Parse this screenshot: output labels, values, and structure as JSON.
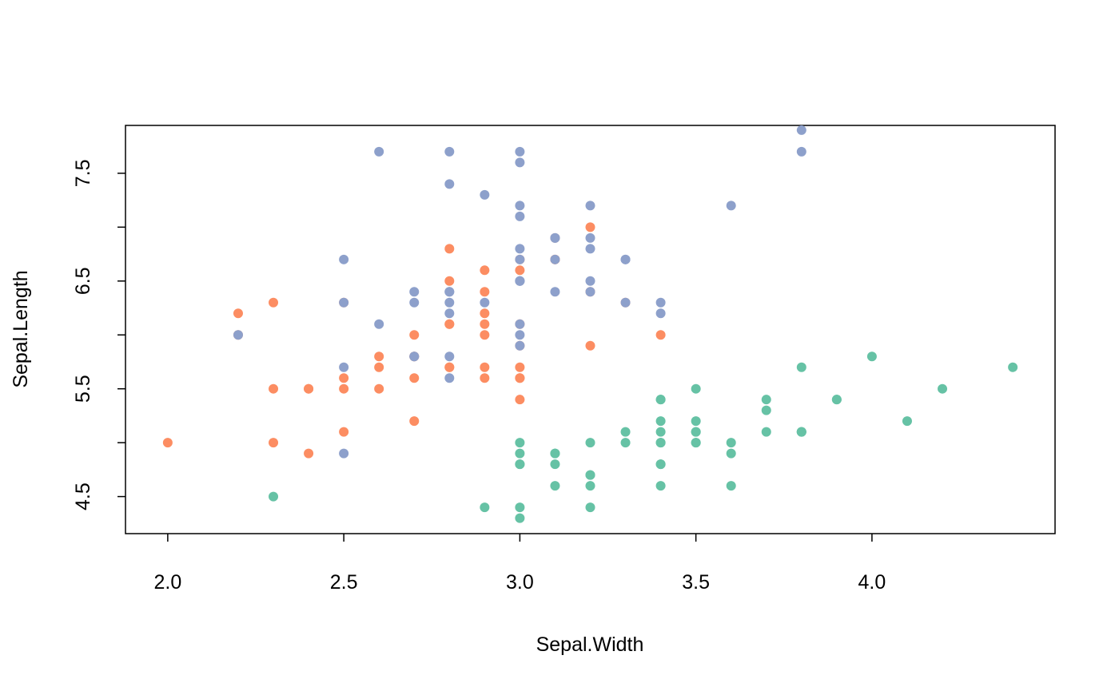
{
  "chart_data": {
    "type": "scatter",
    "title": "",
    "xlabel": "Sepal.Width",
    "ylabel": "Sepal.Length",
    "xlim": [
      1.88,
      4.52
    ],
    "ylim": [
      4.156,
      7.944
    ],
    "x_ticks": [
      2.0,
      2.5,
      3.0,
      3.5,
      4.0
    ],
    "x_tick_labels": [
      "2.0",
      "2.5",
      "3.0",
      "3.5",
      "4.0"
    ],
    "y_ticks": [
      4.5,
      5.0,
      5.5,
      6.0,
      6.5,
      7.0,
      7.5
    ],
    "y_tick_labels": [
      "4.5",
      "",
      "5.5",
      "",
      "6.5",
      "",
      "7.5"
    ],
    "grid": false,
    "legend": "none",
    "series": [
      {
        "color": "#66C2A5",
        "points": [
          [
            3.5,
            5.1
          ],
          [
            3.0,
            4.9
          ],
          [
            3.2,
            4.7
          ],
          [
            3.1,
            4.6
          ],
          [
            3.6,
            5.0
          ],
          [
            3.9,
            5.4
          ],
          [
            3.4,
            4.6
          ],
          [
            3.4,
            5.0
          ],
          [
            2.9,
            4.4
          ],
          [
            3.1,
            4.9
          ],
          [
            3.7,
            5.4
          ],
          [
            3.4,
            4.8
          ],
          [
            3.0,
            4.8
          ],
          [
            3.0,
            4.3
          ],
          [
            4.0,
            5.8
          ],
          [
            4.4,
            5.7
          ],
          [
            3.9,
            5.4
          ],
          [
            3.5,
            5.1
          ],
          [
            3.8,
            5.7
          ],
          [
            3.8,
            5.1
          ],
          [
            3.4,
            5.4
          ],
          [
            3.7,
            5.1
          ],
          [
            3.6,
            4.6
          ],
          [
            3.3,
            5.1
          ],
          [
            3.4,
            4.8
          ],
          [
            3.0,
            5.0
          ],
          [
            3.4,
            5.0
          ],
          [
            3.5,
            5.2
          ],
          [
            3.4,
            5.2
          ],
          [
            3.2,
            4.7
          ],
          [
            3.1,
            4.8
          ],
          [
            3.4,
            5.4
          ],
          [
            4.1,
            5.2
          ],
          [
            4.2,
            5.5
          ],
          [
            3.1,
            4.9
          ],
          [
            3.2,
            5.0
          ],
          [
            3.5,
            5.5
          ],
          [
            3.6,
            4.9
          ],
          [
            3.0,
            4.4
          ],
          [
            3.4,
            5.1
          ],
          [
            3.5,
            5.0
          ],
          [
            2.3,
            4.5
          ],
          [
            3.2,
            4.4
          ],
          [
            3.5,
            5.0
          ],
          [
            3.8,
            5.1
          ],
          [
            3.0,
            4.8
          ],
          [
            3.8,
            5.1
          ],
          [
            3.2,
            4.6
          ],
          [
            3.7,
            5.3
          ],
          [
            3.3,
            5.0
          ]
        ]
      },
      {
        "color": "#FC8D62",
        "points": [
          [
            3.2,
            7.0
          ],
          [
            3.2,
            6.4
          ],
          [
            3.1,
            6.9
          ],
          [
            2.3,
            5.5
          ],
          [
            2.8,
            6.5
          ],
          [
            2.8,
            5.7
          ],
          [
            3.3,
            6.3
          ],
          [
            2.4,
            4.9
          ],
          [
            2.9,
            6.6
          ],
          [
            2.7,
            5.2
          ],
          [
            2.0,
            5.0
          ],
          [
            3.0,
            5.9
          ],
          [
            2.2,
            6.0
          ],
          [
            2.9,
            6.1
          ],
          [
            2.9,
            5.6
          ],
          [
            3.1,
            6.7
          ],
          [
            3.0,
            5.6
          ],
          [
            2.7,
            5.8
          ],
          [
            2.2,
            6.2
          ],
          [
            2.5,
            5.6
          ],
          [
            3.2,
            5.9
          ],
          [
            2.8,
            6.1
          ],
          [
            2.5,
            6.3
          ],
          [
            2.8,
            6.1
          ],
          [
            2.9,
            6.4
          ],
          [
            3.0,
            6.6
          ],
          [
            2.8,
            6.8
          ],
          [
            3.0,
            6.7
          ],
          [
            2.9,
            6.0
          ],
          [
            2.6,
            5.7
          ],
          [
            2.4,
            5.5
          ],
          [
            2.4,
            5.5
          ],
          [
            2.7,
            5.8
          ],
          [
            2.7,
            6.0
          ],
          [
            3.0,
            5.4
          ],
          [
            3.4,
            6.0
          ],
          [
            3.1,
            6.7
          ],
          [
            2.3,
            6.3
          ],
          [
            3.0,
            5.6
          ],
          [
            2.5,
            5.5
          ],
          [
            2.6,
            5.5
          ],
          [
            3.0,
            6.1
          ],
          [
            2.6,
            5.8
          ],
          [
            2.3,
            5.0
          ],
          [
            2.7,
            5.6
          ],
          [
            3.0,
            5.7
          ],
          [
            2.9,
            5.7
          ],
          [
            2.9,
            6.2
          ],
          [
            2.5,
            5.1
          ],
          [
            2.8,
            5.7
          ]
        ]
      },
      {
        "color": "#8DA0CB",
        "points": [
          [
            3.3,
            6.3
          ],
          [
            2.7,
            5.8
          ],
          [
            3.0,
            7.1
          ],
          [
            2.9,
            6.3
          ],
          [
            3.0,
            6.5
          ],
          [
            3.0,
            7.6
          ],
          [
            2.5,
            4.9
          ],
          [
            2.9,
            7.3
          ],
          [
            2.5,
            6.7
          ],
          [
            3.6,
            7.2
          ],
          [
            3.2,
            6.5
          ],
          [
            2.7,
            6.4
          ],
          [
            3.0,
            6.8
          ],
          [
            2.5,
            5.7
          ],
          [
            2.8,
            5.8
          ],
          [
            3.2,
            6.4
          ],
          [
            3.0,
            6.5
          ],
          [
            3.8,
            7.7
          ],
          [
            2.6,
            7.7
          ],
          [
            2.2,
            6.0
          ],
          [
            3.2,
            6.9
          ],
          [
            2.8,
            5.6
          ],
          [
            2.8,
            7.7
          ],
          [
            2.7,
            6.3
          ],
          [
            3.3,
            6.7
          ],
          [
            3.2,
            7.2
          ],
          [
            2.8,
            6.2
          ],
          [
            3.0,
            6.1
          ],
          [
            2.8,
            6.4
          ],
          [
            3.0,
            7.2
          ],
          [
            2.8,
            7.4
          ],
          [
            3.8,
            7.9
          ],
          [
            2.8,
            6.4
          ],
          [
            2.8,
            6.3
          ],
          [
            2.6,
            6.1
          ],
          [
            3.0,
            7.7
          ],
          [
            3.4,
            6.3
          ],
          [
            3.1,
            6.4
          ],
          [
            3.0,
            6.0
          ],
          [
            3.1,
            6.9
          ],
          [
            3.1,
            6.7
          ],
          [
            3.1,
            6.9
          ],
          [
            2.7,
            5.8
          ],
          [
            3.2,
            6.8
          ],
          [
            3.3,
            6.7
          ],
          [
            3.0,
            6.7
          ],
          [
            2.5,
            6.3
          ],
          [
            3.0,
            6.5
          ],
          [
            3.4,
            6.2
          ],
          [
            3.0,
            5.9
          ]
        ]
      }
    ]
  }
}
